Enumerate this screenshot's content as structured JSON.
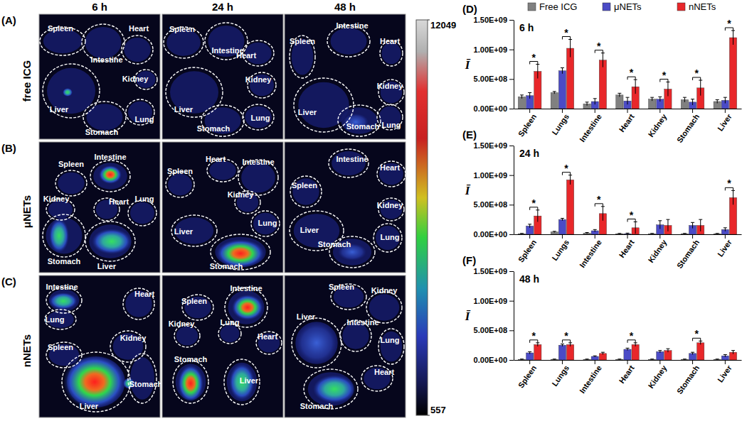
{
  "images": {
    "column_titles": [
      "6 h",
      "24 h",
      "48 h"
    ],
    "rows": [
      {
        "panel_label": "(A)",
        "row_label": "free ICG",
        "cells": [
          [
            "Spleen",
            "Heart",
            "Intestine",
            "Kidney",
            "Liver",
            "Lung",
            "Stomach"
          ],
          [
            "Spleen",
            "Intestine",
            "Heart",
            "Kidney",
            "Liver",
            "Stomach",
            "Lung"
          ],
          [
            "Intestine",
            "Spleen",
            "Heart",
            "Kidney",
            "Liver",
            "Stomach",
            "Lung"
          ]
        ]
      },
      {
        "panel_label": "(B)",
        "row_label": "μNETs",
        "cells": [
          [
            "Intestine",
            "Kidney",
            "Spleen",
            "Heart",
            "Lung",
            "Stomach",
            "Liver"
          ],
          [
            "Spleen",
            "Heart",
            "Intestine",
            "Kidney",
            "Lung",
            "Liver",
            "Stomach"
          ],
          [
            "Intestine",
            "Heart",
            "Spleen",
            "Kidney",
            "Liver",
            "Lung",
            "Stomach"
          ]
        ]
      },
      {
        "panel_label": "(C)",
        "row_label": "nNETs",
        "cells": [
          [
            "Intestine",
            "Heart",
            "Lung",
            "Kidney",
            "Spleen",
            "Liver",
            "Stomach"
          ],
          [
            "Spleen",
            "Intestine",
            "Lung",
            "Kidney",
            "Heart",
            "Stomach",
            "Liver"
          ],
          [
            "Spleen",
            "Kidney",
            "Liver",
            "Intestine",
            "Lung",
            "Heart",
            "Stomach"
          ]
        ]
      }
    ]
  },
  "colorbar": {
    "range": [
      557,
      12049
    ],
    "ticks": [
      557,
      12049
    ]
  },
  "chart_data": [
    {
      "type": "bar",
      "panel_label": "(D)",
      "title": "6 h",
      "ylabel": "Ī",
      "legend": "top",
      "categories": [
        "Spleen",
        "Lungs",
        "Intestine",
        "Heart",
        "Kidney",
        "Stomach",
        "Liver"
      ],
      "series": [
        {
          "name": "Free ICG",
          "color": "#808080",
          "values": [
            200000000,
            270000000,
            80000000,
            230000000,
            160000000,
            150000000,
            120000000
          ],
          "errors": [
            30000000,
            20000000,
            30000000,
            30000000,
            30000000,
            40000000,
            30000000
          ]
        },
        {
          "name": "μNETs",
          "color": "#4b4bc6",
          "values": [
            220000000,
            640000000,
            120000000,
            130000000,
            160000000,
            110000000,
            140000000
          ],
          "errors": [
            50000000,
            50000000,
            50000000,
            60000000,
            40000000,
            50000000,
            50000000
          ]
        },
        {
          "name": "nNETs",
          "color": "#e8272a",
          "values": [
            630000000,
            1020000000,
            820000000,
            370000000,
            330000000,
            350000000,
            1200000000
          ],
          "errors": [
            120000000,
            150000000,
            120000000,
            120000000,
            120000000,
            130000000,
            120000000
          ]
        }
      ],
      "ylim": [
        0,
        1500000000
      ],
      "yticks": [
        {
          "value": 0,
          "label": "0.00E+00"
        },
        {
          "value": 500000000,
          "label": "5.00E+08"
        },
        {
          "value": 1000000000,
          "label": "1.00E+09"
        },
        {
          "value": 1500000000,
          "label": "1.50E+09"
        }
      ],
      "annotations": [
        {
          "category": "Spleen",
          "text": "*"
        },
        {
          "category": "Lungs",
          "text": "*"
        },
        {
          "category": "Intestine",
          "text": "*"
        },
        {
          "category": "Heart",
          "text": "*"
        },
        {
          "category": "Kidney",
          "text": "*"
        },
        {
          "category": "Stomach",
          "text": "*"
        },
        {
          "category": "Liver",
          "text": "*"
        }
      ]
    },
    {
      "type": "bar",
      "panel_label": "(E)",
      "title": "24 h",
      "ylabel": "Ī",
      "categories": [
        "Spleen",
        "Lungs",
        "Intestine",
        "Heart",
        "Kidney",
        "Stomach",
        "Liver"
      ],
      "series": [
        {
          "color": "#808080",
          "values": [
            10000000,
            40000000,
            20000000,
            10000000,
            10000000,
            10000000,
            10000000
          ],
          "errors": [
            5000000,
            10000000,
            10000000,
            5000000,
            5000000,
            5000000,
            5000000
          ]
        },
        {
          "color": "#4b4bc6",
          "values": [
            140000000,
            250000000,
            60000000,
            10000000,
            160000000,
            150000000,
            80000000
          ],
          "errors": [
            30000000,
            20000000,
            20000000,
            10000000,
            70000000,
            50000000,
            30000000
          ]
        },
        {
          "color": "#e8272a",
          "values": [
            310000000,
            920000000,
            350000000,
            110000000,
            150000000,
            150000000,
            620000000
          ],
          "errors": [
            100000000,
            80000000,
            120000000,
            100000000,
            100000000,
            100000000,
            120000000
          ]
        }
      ],
      "ylim": [
        0,
        1500000000
      ],
      "yticks": [
        {
          "value": 0,
          "label": "0.00E+00"
        },
        {
          "value": 500000000,
          "label": "5.00E+08"
        },
        {
          "value": 1000000000,
          "label": "1.00E+09"
        },
        {
          "value": 1500000000,
          "label": "1.50E+09"
        }
      ],
      "annotations": [
        {
          "category": "Spleen",
          "text": "*"
        },
        {
          "category": "Lungs",
          "text": "*"
        },
        {
          "category": "Intestine",
          "text": "*"
        },
        {
          "category": "Heart",
          "text": "*"
        },
        {
          "category": "Liver",
          "text": "*"
        }
      ]
    },
    {
      "type": "bar",
      "panel_label": "(F)",
      "title": "48 h",
      "ylabel": "Ī",
      "categories": [
        "Spleen",
        "Lungs",
        "Intestine",
        "Heart",
        "Kidney",
        "Stomach",
        "Liver"
      ],
      "series": [
        {
          "color": "#808080",
          "values": [
            10000000,
            10000000,
            10000000,
            10000000,
            10000000,
            10000000,
            10000000
          ],
          "errors": [
            5000000,
            5000000,
            5000000,
            5000000,
            5000000,
            5000000,
            5000000
          ]
        },
        {
          "color": "#4b4bc6",
          "values": [
            120000000,
            250000000,
            60000000,
            180000000,
            140000000,
            110000000,
            70000000
          ],
          "errors": [
            20000000,
            20000000,
            10000000,
            20000000,
            20000000,
            20000000,
            20000000
          ]
        },
        {
          "color": "#e8272a",
          "values": [
            260000000,
            260000000,
            110000000,
            260000000,
            160000000,
            290000000,
            130000000
          ],
          "errors": [
            30000000,
            30000000,
            20000000,
            30000000,
            30000000,
            30000000,
            30000000
          ]
        }
      ],
      "ylim": [
        0,
        1500000000
      ],
      "yticks": [
        {
          "value": 0,
          "label": "0.00E+00"
        },
        {
          "value": 500000000,
          "label": "5.00E+08"
        },
        {
          "value": 1000000000,
          "label": "1.00E+09"
        },
        {
          "value": 1500000000,
          "label": "1.50E+09"
        }
      ],
      "annotations": [
        {
          "category": "Spleen",
          "text": "*"
        },
        {
          "category": "Lungs",
          "text": "*"
        },
        {
          "category": "Heart",
          "text": "*"
        },
        {
          "category": "Stomach",
          "text": "*"
        }
      ]
    }
  ]
}
